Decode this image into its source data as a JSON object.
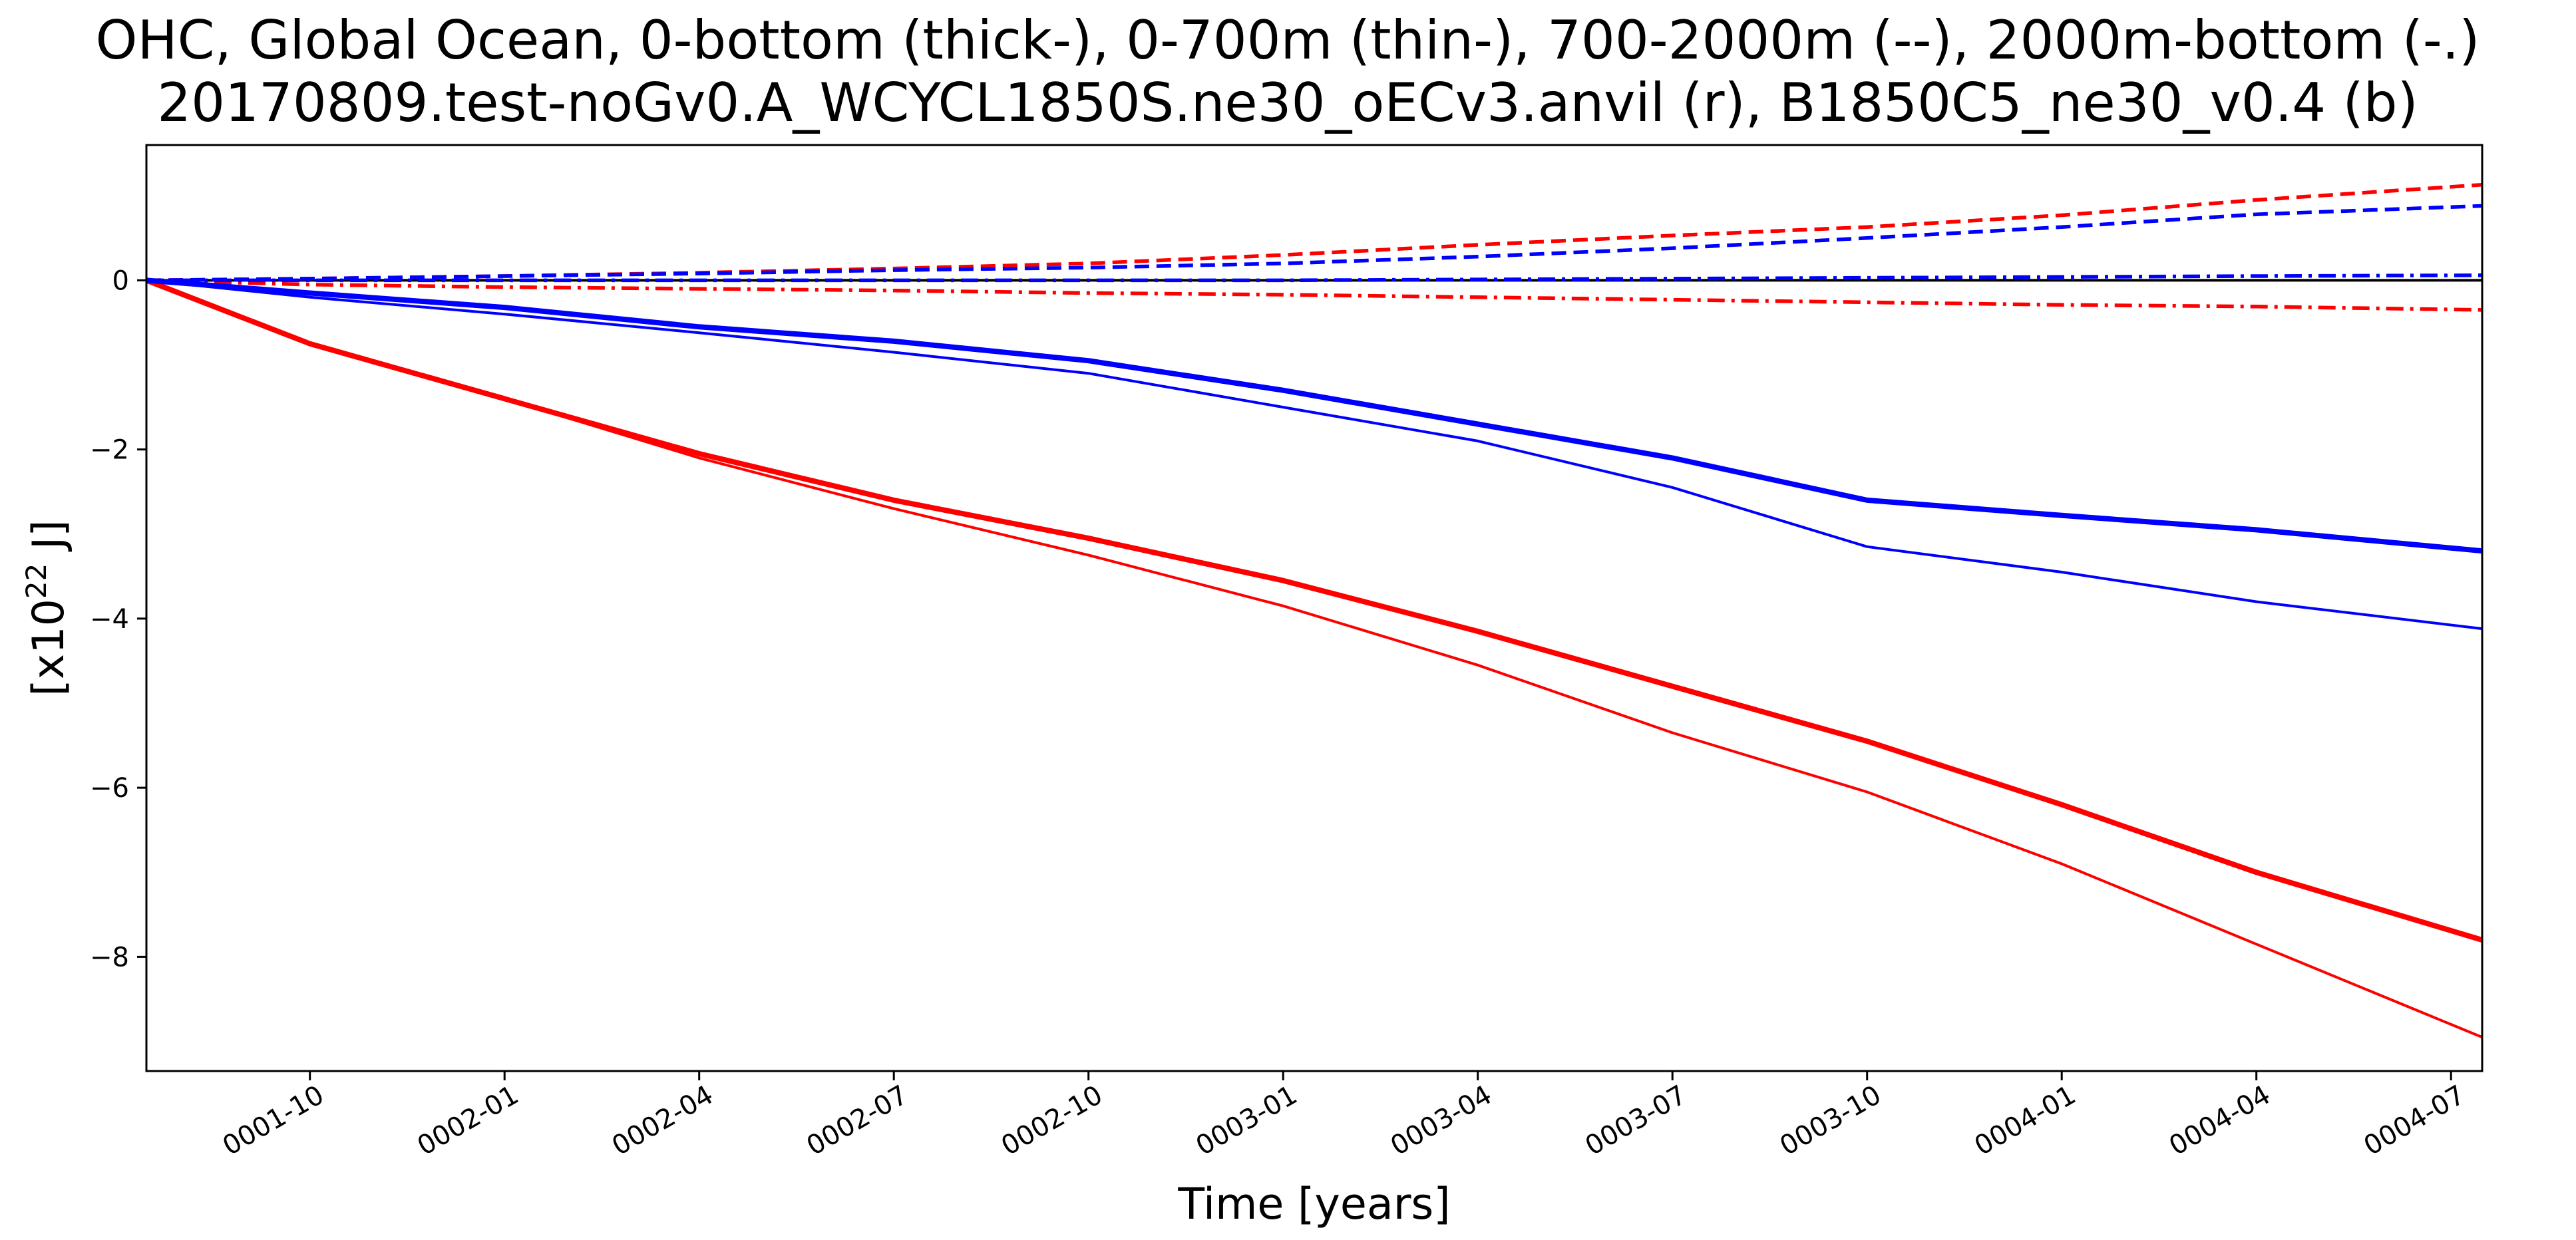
{
  "chart_data": {
    "type": "line",
    "title_lines": [
      "OHC, Global Ocean, 0-bottom (thick-), 0-700m (thin-), 700-2000m (--), 2000m-bottom (-.)",
      "20170809.test-noGv0.A_WCYCL1850S.ne30_oECv3.anvil (r), B1850C5_ne30_v0.4 (b)"
    ],
    "xlabel": "Time [years]",
    "ylabel_base": "[x10",
    "ylabel_sup": "22",
    "ylabel_unit": " J]",
    "x_tick_labels": [
      "0001-10",
      "0002-01",
      "0002-04",
      "0002-07",
      "0002-10",
      "0003-01",
      "0003-04",
      "0003-07",
      "0003-10",
      "0004-01",
      "0004-04",
      "0004-07"
    ],
    "x_ticks": [
      1.75,
      2.0,
      2.25,
      2.5,
      2.75,
      3.0,
      3.25,
      3.5,
      3.75,
      4.0,
      4.25,
      4.5
    ],
    "xlim": [
      1.54,
      4.54
    ],
    "y_ticks": [
      0,
      -2,
      -4,
      -6,
      -8
    ],
    "y_tick_labels": [
      "0",
      "−2",
      "−4",
      "−6",
      "−8"
    ],
    "ylim": [
      -9.35,
      1.6
    ],
    "zero_line": true,
    "grid": false,
    "legend": "none",
    "colors": {
      "r": "#ff0000",
      "b": "#0000ff",
      "zero": "#000000"
    },
    "series": [
      {
        "color": "r",
        "style": "thick-solid",
        "x": [
          1.54,
          1.75,
          2.0,
          2.25,
          2.5,
          2.75,
          3.0,
          3.25,
          3.5,
          3.75,
          4.0,
          4.25,
          4.54
        ],
        "y": [
          0.0,
          -0.75,
          -1.4,
          -2.05,
          -2.6,
          -3.05,
          -3.55,
          -4.15,
          -4.8,
          -5.45,
          -6.2,
          -7.0,
          -7.8
        ]
      },
      {
        "color": "r",
        "style": "thin-solid",
        "x": [
          1.54,
          1.75,
          2.0,
          2.25,
          2.5,
          2.75,
          3.0,
          3.25,
          3.5,
          3.75,
          4.0,
          4.25,
          4.54
        ],
        "y": [
          0.0,
          -0.75,
          -1.4,
          -2.1,
          -2.7,
          -3.25,
          -3.85,
          -4.55,
          -5.35,
          -6.05,
          -6.9,
          -7.85,
          -8.95
        ]
      },
      {
        "color": "r",
        "style": "dashed",
        "x": [
          1.54,
          1.75,
          2.0,
          2.25,
          2.5,
          2.75,
          3.0,
          3.25,
          3.5,
          3.75,
          4.0,
          4.25,
          4.54
        ],
        "y": [
          0.0,
          0.02,
          0.05,
          0.09,
          0.14,
          0.2,
          0.3,
          0.42,
          0.53,
          0.63,
          0.77,
          0.95,
          1.13
        ]
      },
      {
        "color": "r",
        "style": "dashdot",
        "x": [
          1.54,
          1.75,
          2.0,
          2.25,
          2.5,
          2.75,
          3.0,
          3.25,
          3.5,
          3.75,
          4.0,
          4.25,
          4.54
        ],
        "y": [
          0.0,
          -0.05,
          -0.08,
          -0.1,
          -0.12,
          -0.15,
          -0.17,
          -0.2,
          -0.23,
          -0.26,
          -0.29,
          -0.31,
          -0.35
        ]
      },
      {
        "color": "b",
        "style": "thick-solid",
        "x": [
          1.54,
          1.75,
          2.0,
          2.25,
          2.5,
          2.75,
          3.0,
          3.25,
          3.5,
          3.75,
          4.0,
          4.25,
          4.54
        ],
        "y": [
          0.0,
          -0.15,
          -0.32,
          -0.55,
          -0.72,
          -0.95,
          -1.3,
          -1.7,
          -2.1,
          -2.6,
          -2.78,
          -2.95,
          -3.2
        ]
      },
      {
        "color": "b",
        "style": "thin-solid",
        "x": [
          1.54,
          1.75,
          2.0,
          2.25,
          2.5,
          2.75,
          3.0,
          3.25,
          3.5,
          3.75,
          4.0,
          4.25,
          4.54
        ],
        "y": [
          0.0,
          -0.2,
          -0.4,
          -0.62,
          -0.85,
          -1.1,
          -1.5,
          -1.9,
          -2.45,
          -3.15,
          -3.45,
          -3.8,
          -4.12
        ]
      },
      {
        "color": "b",
        "style": "dashed",
        "x": [
          1.54,
          1.75,
          2.0,
          2.25,
          2.5,
          2.75,
          3.0,
          3.25,
          3.5,
          3.75,
          4.0,
          4.25,
          4.54
        ],
        "y": [
          0.0,
          0.02,
          0.05,
          0.08,
          0.12,
          0.15,
          0.2,
          0.28,
          0.38,
          0.5,
          0.63,
          0.78,
          0.88
        ]
      },
      {
        "color": "b",
        "style": "dashdot",
        "x": [
          1.54,
          1.75,
          2.0,
          2.25,
          2.5,
          2.75,
          3.0,
          3.25,
          3.5,
          3.75,
          4.0,
          4.25,
          4.54
        ],
        "y": [
          0.0,
          0.0,
          0.0,
          0.0,
          0.0,
          0.0,
          0.0,
          0.01,
          0.02,
          0.03,
          0.04,
          0.05,
          0.06
        ]
      }
    ]
  }
}
